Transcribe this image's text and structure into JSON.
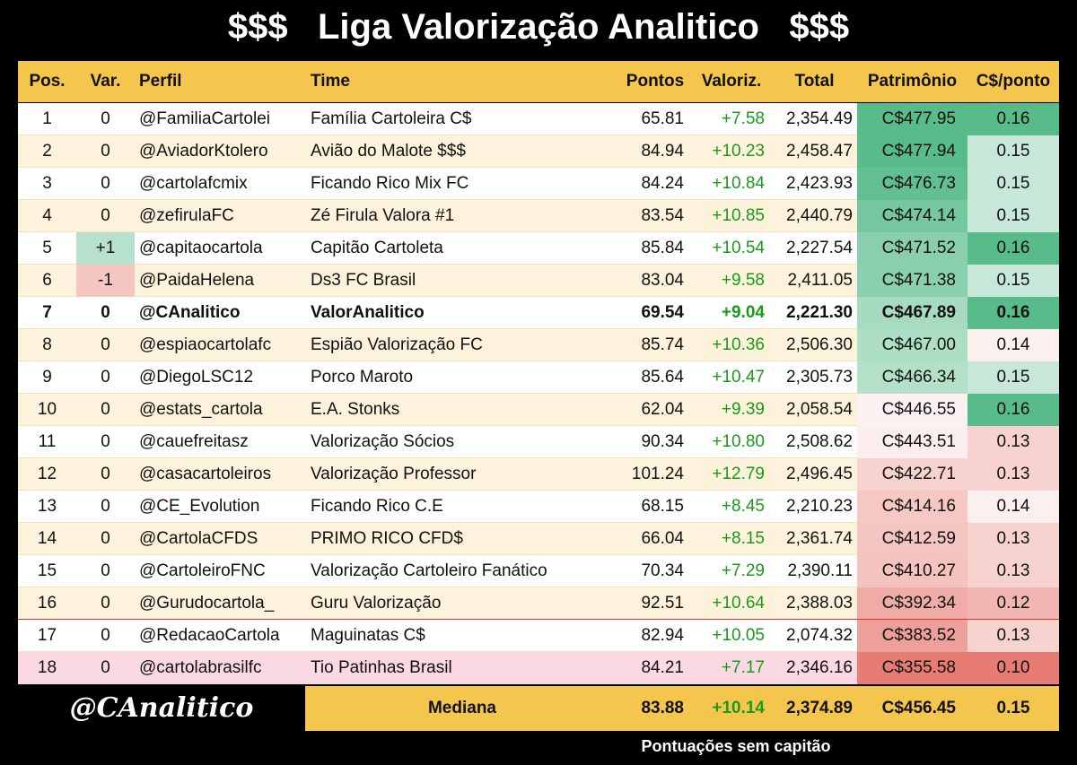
{
  "header": {
    "title": "$$$   Liga Valorização Analitico   $$$"
  },
  "table": {
    "columns": [
      "Pos.",
      "Var.",
      "Perfil",
      "Time",
      "Pontos",
      "Valoriz.",
      "Total",
      "Patrimônio",
      "C$/ponto"
    ],
    "rows": [
      [
        "1",
        "0",
        "@FamiliaCartolei",
        "Família Cartoleira C$",
        "65.81",
        "+7.58",
        "2,354.49",
        "C$477.95",
        "0.16"
      ],
      [
        "2",
        "0",
        "@AviadorKtolero",
        "Avião do Malote $$$",
        "84.94",
        "+10.23",
        "2,458.47",
        "C$477.94",
        "0.15"
      ],
      [
        "3",
        "0",
        "@cartolafcmix",
        "Ficando Rico Mix FC",
        "84.24",
        "+10.84",
        "2,423.93",
        "C$476.73",
        "0.15"
      ],
      [
        "4",
        "0",
        "@zefirulaFC",
        "Zé Firula Valora #1",
        "83.54",
        "+10.85",
        "2,440.79",
        "C$474.14",
        "0.15"
      ],
      [
        "5",
        "+1",
        "@capitaocartola",
        "Capitão Cartoleta",
        "85.84",
        "+10.54",
        "2,227.54",
        "C$471.52",
        "0.16"
      ],
      [
        "6",
        "-1",
        "@PaidaHelena",
        "Ds3 FC Brasil",
        "83.04",
        "+9.58",
        "2,411.05",
        "C$471.38",
        "0.15"
      ],
      [
        "7",
        "0",
        "@CAnalitico",
        "ValorAnalitico",
        "69.54",
        "+9.04",
        "2,221.30",
        "C$467.89",
        "0.16"
      ],
      [
        "8",
        "0",
        "@espiaocartolafc",
        "Espião Valorização FC",
        "85.74",
        "+10.36",
        "2,506.30",
        "C$467.00",
        "0.14"
      ],
      [
        "9",
        "0",
        "@DiegoLSC12",
        "Porco Maroto",
        "85.64",
        "+10.47",
        "2,305.73",
        "C$466.34",
        "0.15"
      ],
      [
        "10",
        "0",
        "@estats_cartola",
        "E.A. Stonks",
        "62.04",
        "+9.39",
        "2,058.54",
        "C$446.55",
        "0.16"
      ],
      [
        "11",
        "0",
        "@cauefreitasz",
        "Valorização Sócios",
        "90.34",
        "+10.80",
        "2,508.62",
        "C$443.51",
        "0.13"
      ],
      [
        "12",
        "0",
        "@casacartoleiros",
        "Valorização Professor",
        "101.24",
        "+12.79",
        "2,496.45",
        "C$422.71",
        "0.13"
      ],
      [
        "13",
        "0",
        "@CE_Evolution",
        "Ficando Rico C.E",
        "68.15",
        "+8.45",
        "2,210.23",
        "C$414.16",
        "0.14"
      ],
      [
        "14",
        "0",
        "@CartolaCFDS",
        "PRIMO RICO CFD$",
        "66.04",
        "+8.15",
        "2,361.74",
        "C$412.59",
        "0.13"
      ],
      [
        "15",
        "0",
        "@CartoleiroFNC",
        "Valorização Cartoleiro Fanático",
        "70.34",
        "+7.29",
        "2,390.11",
        "C$410.27",
        "0.13"
      ],
      [
        "16",
        "0",
        "@Gurudocartola_",
        "Guru Valorização",
        "92.51",
        "+10.64",
        "2,388.03",
        "C$392.34",
        "0.12"
      ],
      [
        "17",
        "0",
        "@RedacaoCartola",
        "Maguinatas C$",
        "82.94",
        "+10.05",
        "2,074.32",
        "C$383.52",
        "0.13"
      ],
      [
        "18",
        "0",
        "@cartolabrasilfc",
        "Tio Patinhas Brasil",
        "84.21",
        "+7.17",
        "2,346.16",
        "C$355.58",
        "0.10"
      ]
    ]
  },
  "footer": {
    "handle": "@CAnalitico",
    "summary_label": "Mediana",
    "summary": [
      "83.88",
      "+10.14",
      "2,374.89",
      "C$456.45",
      "0.15"
    ],
    "note": "Pontuações sem capitão"
  }
}
